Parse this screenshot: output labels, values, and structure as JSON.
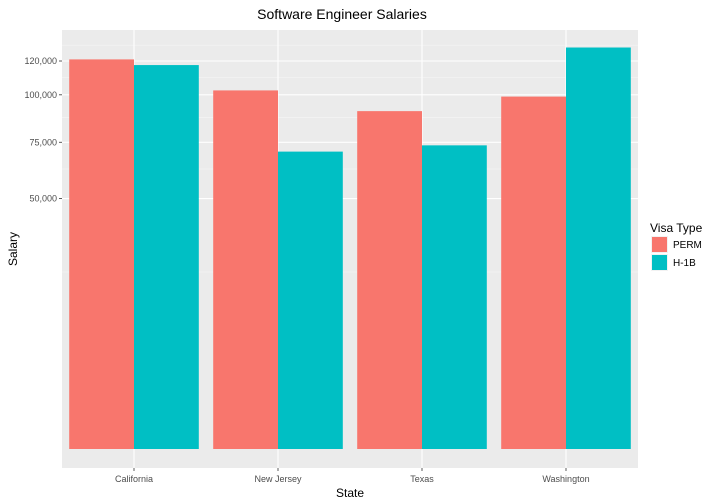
{
  "chart_data": {
    "type": "bar",
    "title": "Software Engineer Salaries",
    "xlabel": "State",
    "ylabel": "Salary",
    "categories": [
      "California",
      "New Jersey",
      "Texas",
      "Washington"
    ],
    "series": [
      {
        "name": "PERM",
        "color": "#F8766D",
        "values": [
          121000,
          102500,
          91000,
          99000
        ]
      },
      {
        "name": "H-1B",
        "color": "#00BFC4",
        "values": [
          117500,
          70500,
          73500,
          128500
        ]
      }
    ],
    "y_ticks": [
      {
        "value": 50000,
        "label": "50,000"
      },
      {
        "value": 75000,
        "label": "75,000"
      },
      {
        "value": 100000,
        "label": "100,000"
      },
      {
        "value": 120000,
        "label": "120,000"
      }
    ],
    "ylim": [
      0,
      134000
    ],
    "y_scale": "sqrt",
    "grid": true,
    "legend_title": "Visa Type",
    "legend_position": "right",
    "panel_background": "#EBEBEB"
  }
}
